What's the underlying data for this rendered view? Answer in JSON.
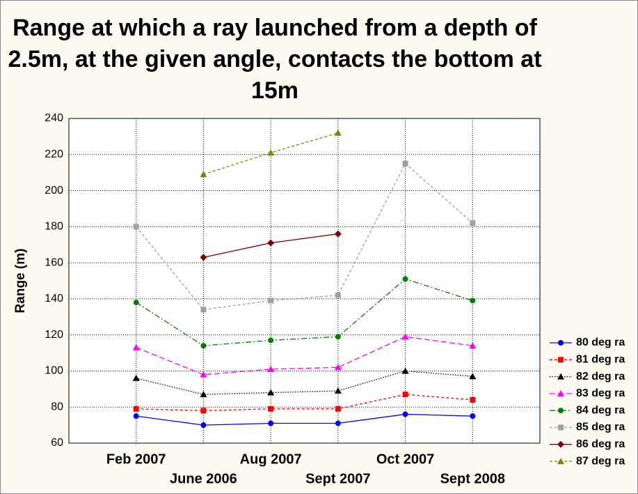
{
  "chart_data": {
    "type": "line",
    "title": "Range at which a ray launched from a depth of 2.5m, at the given angle, contacts the bottom at 15m",
    "ylabel": "Range (m)",
    "categories": [
      "Feb 2007",
      "June 2006",
      "Aug 2007",
      "Sept 2007",
      "Oct 2007",
      "Sept 2008"
    ],
    "ylim": [
      60,
      240
    ],
    "yticks": [
      60,
      80,
      100,
      120,
      140,
      160,
      180,
      200,
      220,
      240
    ],
    "grid": true,
    "series": [
      {
        "name": "80 deg ra",
        "color": "#0000ff",
        "marker": "circle",
        "dash": "solid",
        "values": [
          75,
          70,
          71,
          71,
          76,
          75
        ]
      },
      {
        "name": "81 deg ra",
        "color": "#ff0000",
        "marker": "square",
        "dash": "dashed",
        "values": [
          79,
          78,
          79,
          79,
          87,
          84
        ]
      },
      {
        "name": "82 deg ra",
        "color": "#000000",
        "marker": "triangle",
        "dash": "dotted",
        "values": [
          96,
          87,
          88,
          89,
          100,
          97
        ]
      },
      {
        "name": "83 deg ra",
        "color": "#ff00ff",
        "marker": "triangle",
        "dash": "longdash",
        "values": [
          113,
          98,
          101,
          102,
          119,
          114
        ]
      },
      {
        "name": "84 deg ra",
        "color": "#008000",
        "marker": "circle",
        "dash": "dashdot",
        "values": [
          138,
          114,
          117,
          119,
          151,
          139
        ]
      },
      {
        "name": "85  deg ra",
        "color": "#a0a0a0",
        "marker": "square",
        "dash": "dashed",
        "values": [
          180,
          134,
          139,
          142,
          215,
          182
        ]
      },
      {
        "name": "86 deg ra",
        "color": "#800000",
        "marker": "diamond",
        "dash": "solid",
        "values": [
          null,
          163,
          171,
          176,
          null,
          null
        ]
      },
      {
        "name": "87 deg ra",
        "color": "#808000",
        "marker": "triangle",
        "dash": "dashed",
        "values": [
          null,
          209,
          221,
          232,
          null,
          null
        ]
      }
    ]
  }
}
